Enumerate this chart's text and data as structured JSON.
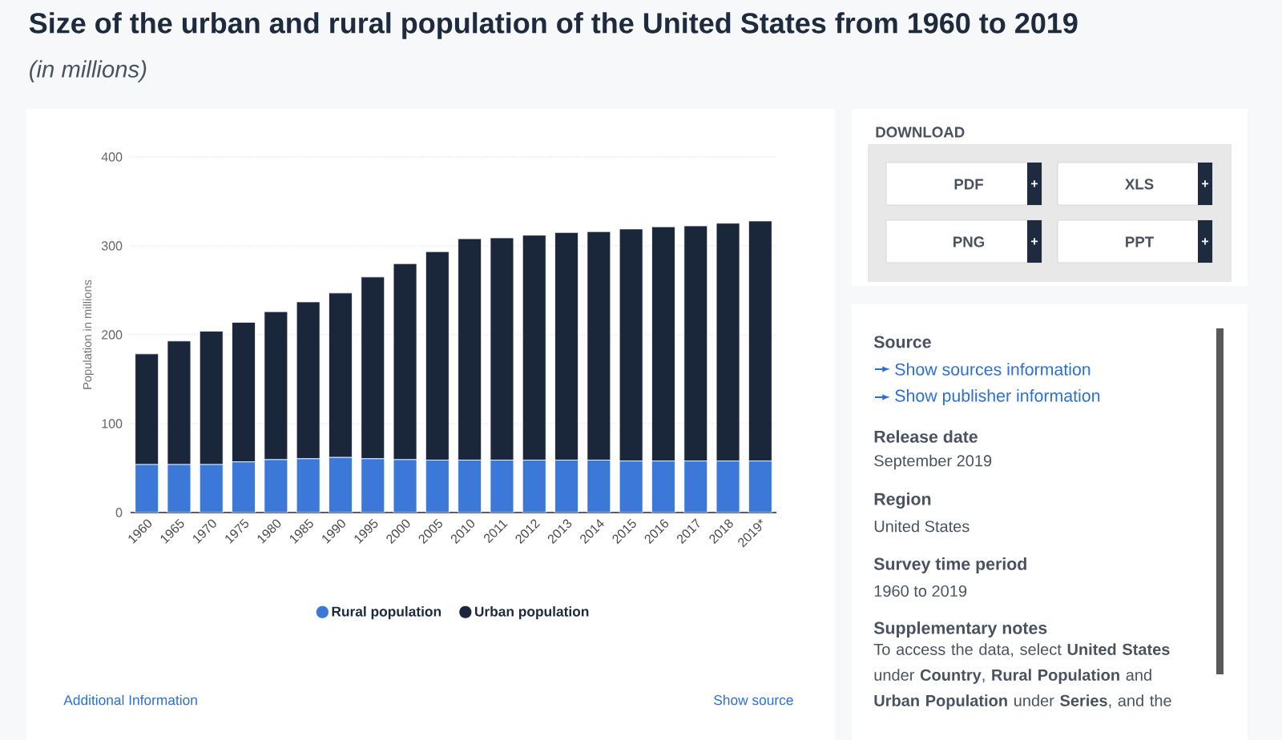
{
  "chart_data": {
    "type": "bar",
    "stacked": true,
    "title": "Size of the urban and rural population of the United States from 1960 to 2019",
    "subtitle": "(in millions)",
    "ylabel": "Population in millions",
    "categories": [
      "1960",
      "1965",
      "1970",
      "1975",
      "1980",
      "1985",
      "1990",
      "1995",
      "2000",
      "2005",
      "2010",
      "2011",
      "2012",
      "2013",
      "2014",
      "2015",
      "2016",
      "2017",
      "2018",
      "2019*"
    ],
    "series": [
      {
        "name": "Rural population",
        "color": "#3b78d8",
        "values": [
          54,
          54,
          54,
          57,
          59.5,
          60.5,
          62,
          60.5,
          59.5,
          59,
          59,
          59,
          59,
          59,
          59,
          58,
          58,
          58,
          58,
          58
        ]
      },
      {
        "name": "Urban population",
        "color": "#1a273b",
        "values": [
          124.5,
          139,
          150,
          157,
          166.5,
          176.5,
          185,
          204.5,
          220.5,
          234.5,
          249,
          250,
          253,
          256,
          257,
          261,
          263.5,
          264.5,
          267.5,
          270
        ]
      }
    ],
    "ylim": [
      0,
      400
    ],
    "yticks": [
      0,
      100,
      200,
      300,
      400
    ],
    "grid": "y",
    "legend": "bottom",
    "annotations": [
      "DOWNLOAD",
      "PDF",
      "XLS",
      "PNG",
      "PPT",
      "+",
      "+",
      "+",
      "+",
      "Source",
      "Show sources information",
      "Show publisher information",
      "Release date",
      "September 2019",
      "Region",
      "United States",
      "Survey time period",
      "1960 to 2019",
      "Supplementary notes",
      "To access the data, select **United States** under **Country**, **Rural Population** and **Urban Population** under **Series**, and the",
      "Additional Information",
      "Show source"
    ]
  }
}
